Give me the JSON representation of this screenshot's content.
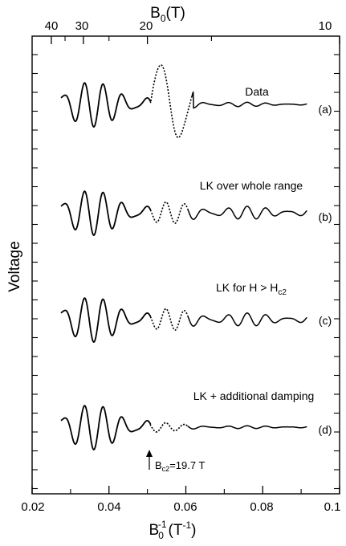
{
  "chart_data": {
    "type": "line",
    "top_axis": {
      "label": "B",
      "label_sub": "0",
      "label_unit": "(T)",
      "ticks": [
        {
          "value": 40,
          "label": "40"
        },
        {
          "value": 30,
          "label": "30"
        },
        {
          "value": 20,
          "label": "20"
        },
        {
          "value": 10,
          "label": "10"
        }
      ],
      "minor_ticks": [
        35,
        25,
        15
      ]
    },
    "bottom_axis": {
      "label": "B",
      "label_sub": "0",
      "label_sup": "-1",
      "label_unit_prefix": "(T",
      "label_unit_sup": "-1",
      "label_unit_suffix": ")",
      "xlim": [
        0.02,
        0.1
      ],
      "ticks": [
        {
          "value": 0.02,
          "label": "0.02"
        },
        {
          "value": 0.04,
          "label": "0.04"
        },
        {
          "value": 0.06,
          "label": "0.06"
        },
        {
          "value": 0.08,
          "label": "0.08"
        },
        {
          "value": 0.1,
          "label": "0.1"
        }
      ]
    },
    "ylabel": "Voltage",
    "x_range_data": [
      0.0275,
      0.0915
    ],
    "bc2_inverse": 0.0508,
    "annotation": {
      "text_main": "B",
      "text_sub": "c2",
      "text_value": "=19.7 T"
    },
    "grid": false,
    "series": [
      {
        "name": "Data",
        "panel_letter": "(a)",
        "id": "a",
        "mode": "data"
      },
      {
        "name": "LK over whole range",
        "panel_letter": "(b)",
        "id": "b",
        "mode": "lk"
      },
      {
        "name": "LK for H > H",
        "name_sub": "c2",
        "panel_letter": "(c)",
        "id": "c",
        "mode": "lk"
      },
      {
        "name": "LK + additional damping",
        "panel_letter": "(d)",
        "id": "d",
        "mode": "damped"
      }
    ]
  }
}
